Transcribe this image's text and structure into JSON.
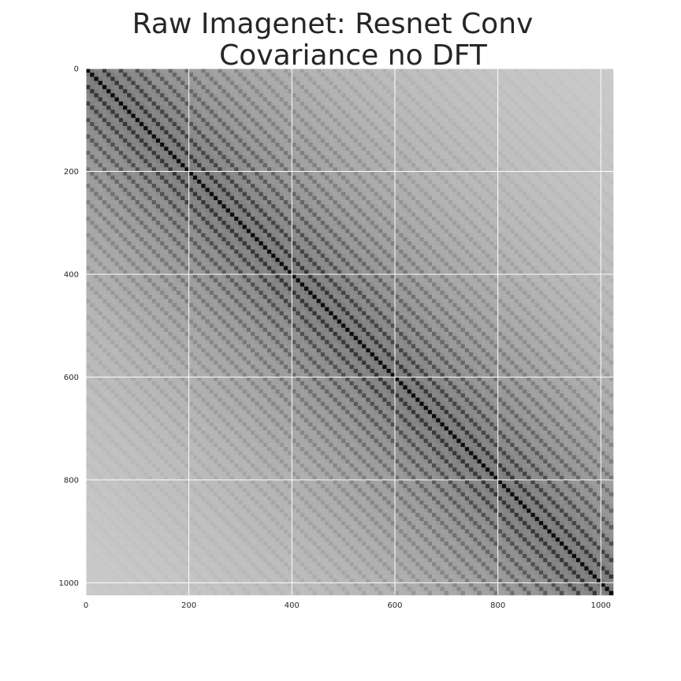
{
  "chart_data": {
    "type": "heatmap",
    "title_lines": [
      "Raw Imagenet: Resnet Conv",
      "Covariance no DFT"
    ],
    "xlabel": "",
    "ylabel": "",
    "size": 1024,
    "xlim": [
      0,
      1024
    ],
    "ylim": [
      1024,
      0
    ],
    "x_ticks": [
      0,
      200,
      400,
      600,
      800,
      1000
    ],
    "y_ticks": [
      0,
      200,
      400,
      600,
      800,
      1000
    ],
    "colormap": "greys",
    "grid": true,
    "grid_color": "#ffffff",
    "structure": {
      "description_values": {
        "block_period": 32,
        "diagonal_value": 1.0,
        "background_value_near_diagonal": 0.45,
        "background_value_far_from_diagonal": 0.15
      }
    }
  }
}
